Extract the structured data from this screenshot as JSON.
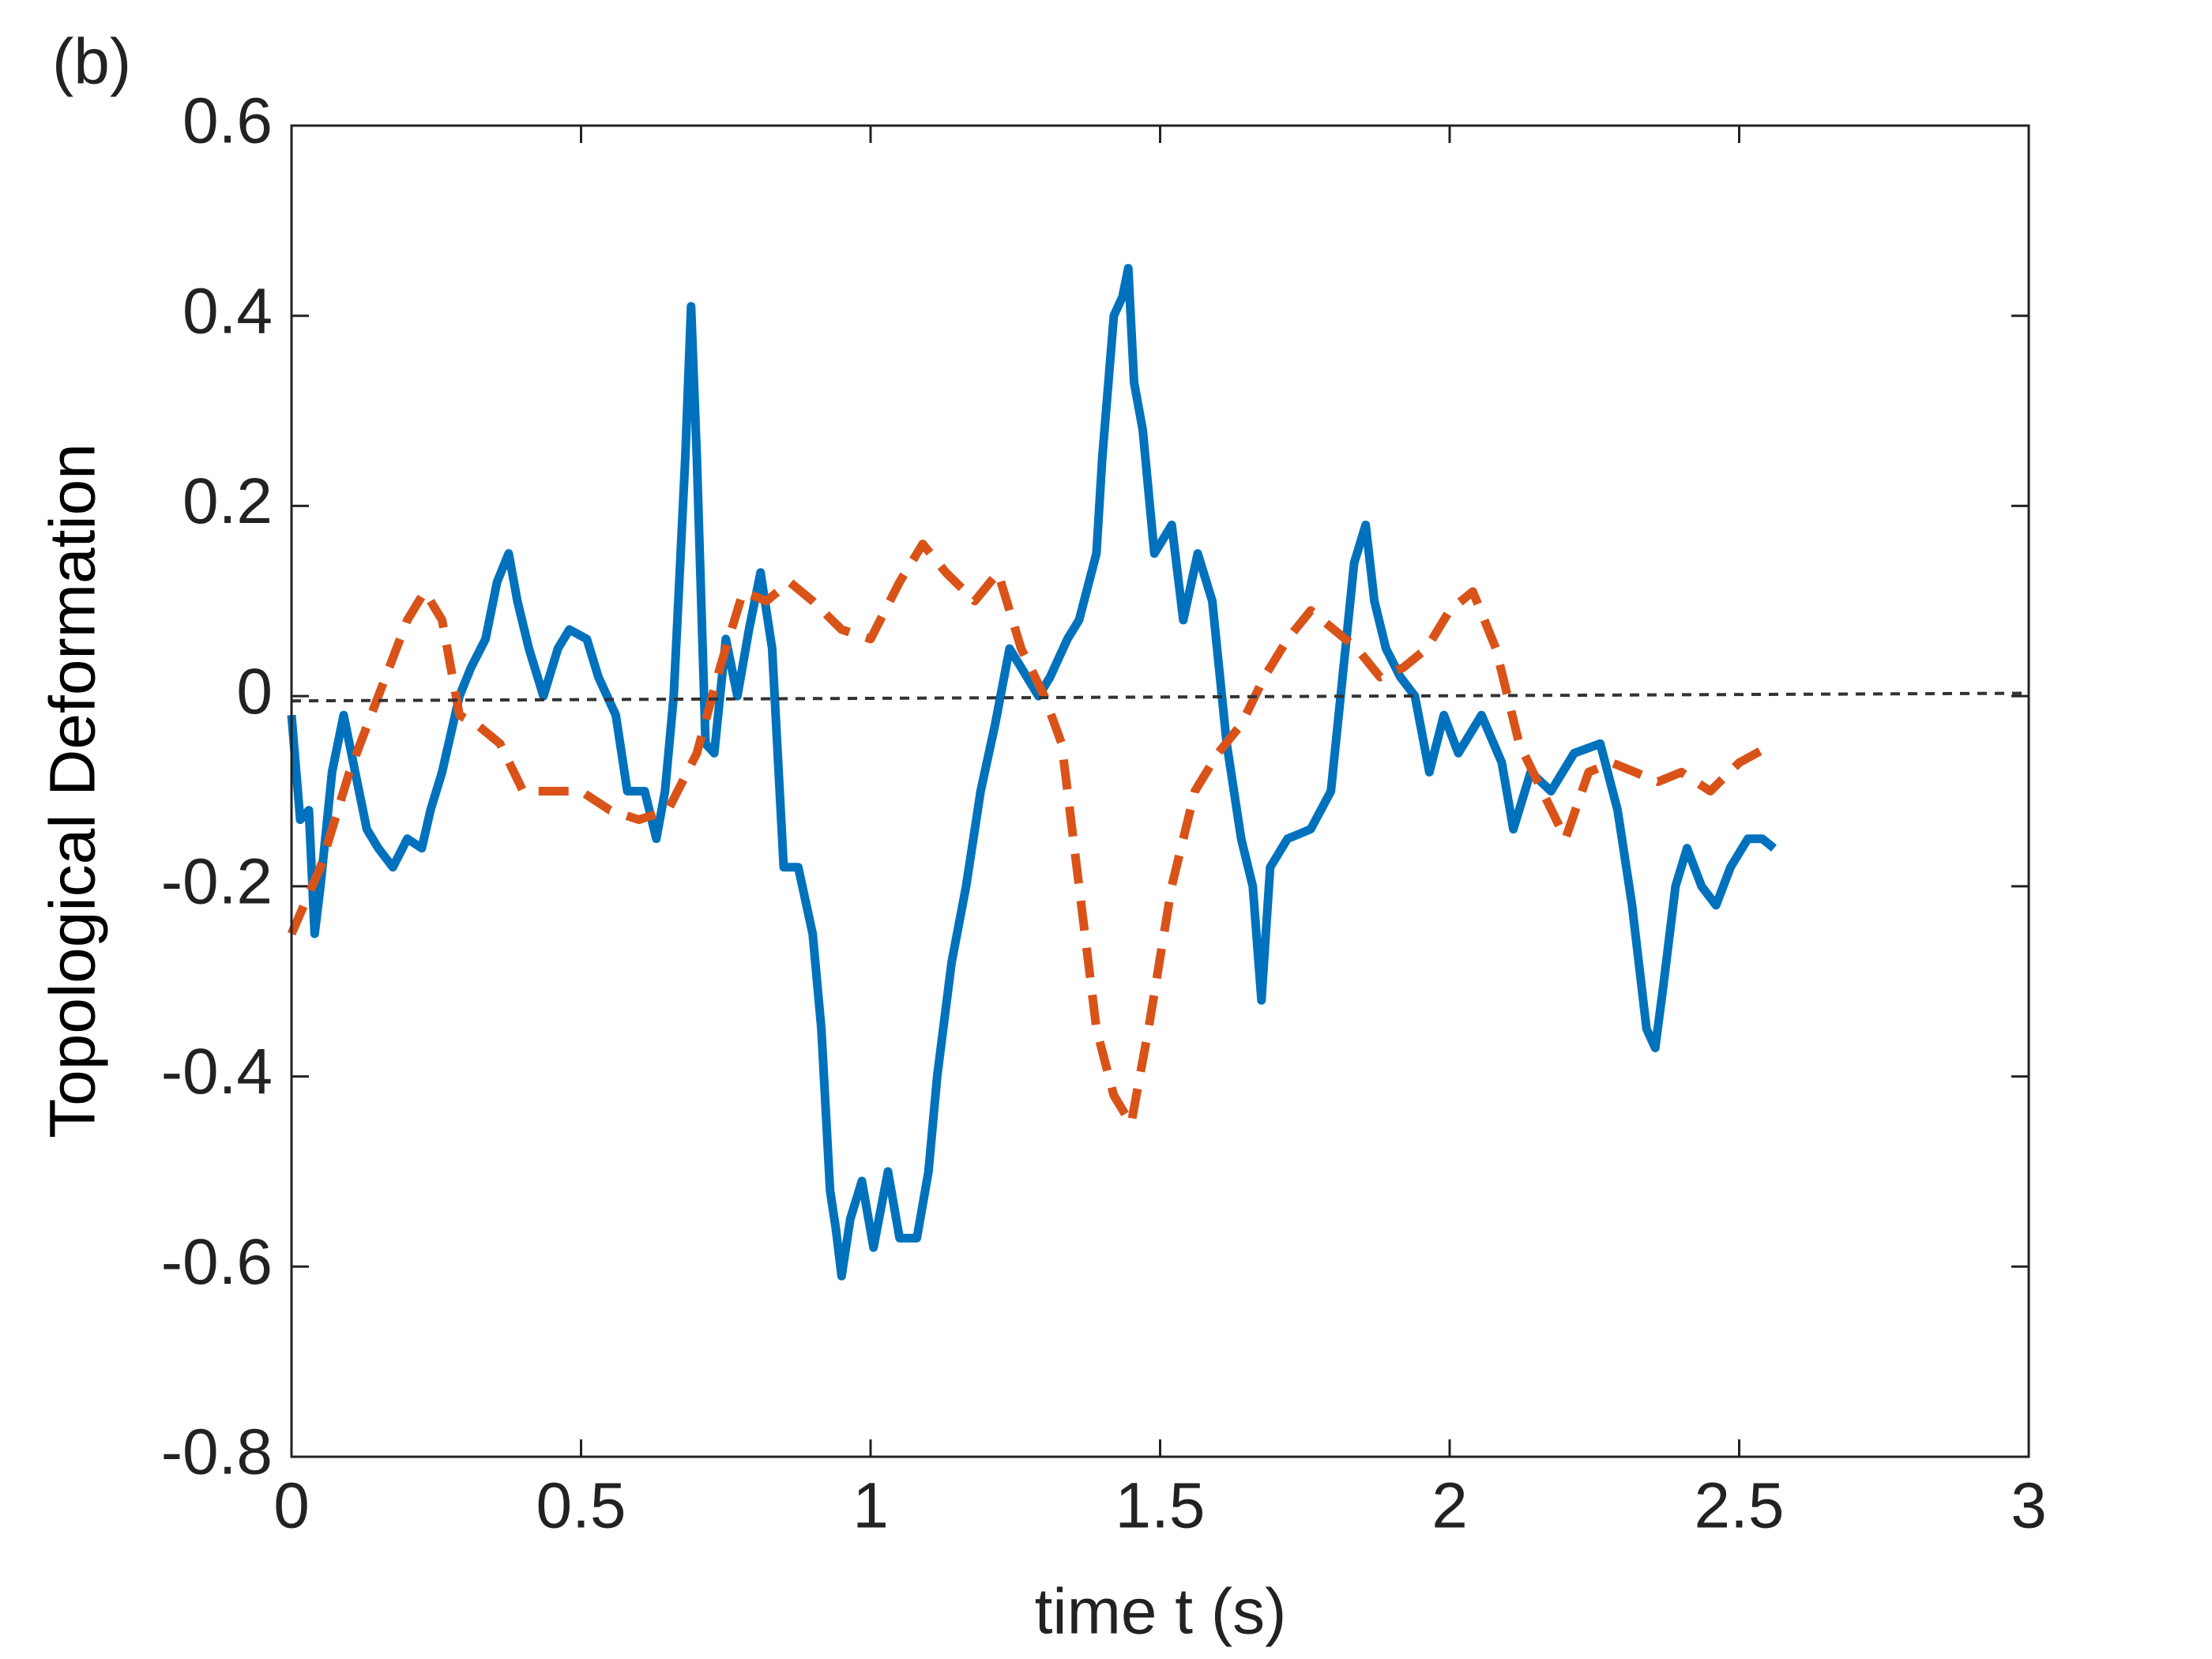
{
  "chart_data": {
    "type": "line",
    "title": "(b)",
    "x_label": "time  t (s)",
    "y_label": "Topological Deformation",
    "xlim": [
      0,
      3
    ],
    "xticks": [
      0,
      0.5,
      1,
      1.5,
      2,
      2.5,
      3
    ],
    "ylim": [
      -0.8,
      0.6
    ],
    "yticks": [
      -0.8,
      -0.6,
      -0.4,
      -0.2,
      0,
      0.2,
      0.4,
      0.6
    ],
    "grid": false,
    "series": [
      {
        "color": "#0072BD",
        "dash": false,
        "x": [
          0,
          0.015,
          0.03,
          0.04,
          0.05,
          0.07,
          0.09,
          0.11,
          0.13,
          0.15,
          0.175,
          0.2,
          0.225,
          0.24,
          0.26,
          0.29,
          0.31,
          0.335,
          0.355,
          0.375,
          0.39,
          0.41,
          0.435,
          0.46,
          0.48,
          0.51,
          0.53,
          0.56,
          0.58,
          0.61,
          0.63,
          0.645,
          0.66,
          0.68,
          0.69,
          0.7,
          0.715,
          0.73,
          0.75,
          0.77,
          0.79,
          0.81,
          0.83,
          0.85,
          0.875,
          0.9,
          0.915,
          0.93,
          0.94,
          0.95,
          0.965,
          0.985,
          1.005,
          1.03,
          1.05,
          1.08,
          1.1,
          1.115,
          1.14,
          1.165,
          1.19,
          1.215,
          1.24,
          1.26,
          1.29,
          1.31,
          1.34,
          1.36,
          1.39,
          1.4,
          1.42,
          1.435,
          1.445,
          1.455,
          1.47,
          1.49,
          1.52,
          1.54,
          1.565,
          1.59,
          1.615,
          1.64,
          1.66,
          1.675,
          1.69,
          1.72,
          1.76,
          1.795,
          1.82,
          1.835,
          1.855,
          1.87,
          1.89,
          1.915,
          1.94,
          1.965,
          1.99,
          2.015,
          2.055,
          2.09,
          2.11,
          2.14,
          2.175,
          2.215,
          2.26,
          2.29,
          2.315,
          2.34,
          2.355,
          2.37,
          2.39,
          2.41,
          2.435,
          2.46,
          2.485,
          2.515,
          2.54,
          2.56
        ],
        "values": [
          -0.02,
          -0.13,
          -0.12,
          -0.25,
          -0.2,
          -0.08,
          -0.02,
          -0.08,
          -0.14,
          -0.16,
          -0.18,
          -0.15,
          -0.16,
          -0.12,
          -0.08,
          0.0,
          0.03,
          0.06,
          0.12,
          0.15,
          0.1,
          0.05,
          0.0,
          0.05,
          0.07,
          0.06,
          0.02,
          -0.02,
          -0.1,
          -0.1,
          -0.15,
          -0.1,
          0.0,
          0.25,
          0.41,
          0.25,
          -0.05,
          -0.06,
          0.06,
          0.0,
          0.07,
          0.13,
          0.05,
          -0.18,
          -0.18,
          -0.25,
          -0.35,
          -0.52,
          -0.56,
          -0.61,
          -0.55,
          -0.51,
          -0.58,
          -0.5,
          -0.57,
          -0.57,
          -0.5,
          -0.4,
          -0.28,
          -0.2,
          -0.1,
          -0.03,
          0.05,
          0.03,
          0.0,
          0.02,
          0.06,
          0.08,
          0.15,
          0.25,
          0.4,
          0.42,
          0.45,
          0.33,
          0.28,
          0.15,
          0.18,
          0.08,
          0.15,
          0.1,
          -0.05,
          -0.15,
          -0.2,
          -0.32,
          -0.18,
          -0.15,
          -0.14,
          -0.1,
          0.05,
          0.14,
          0.18,
          0.1,
          0.05,
          0.02,
          0.0,
          -0.08,
          -0.02,
          -0.06,
          -0.02,
          -0.07,
          -0.14,
          -0.08,
          -0.1,
          -0.06,
          -0.05,
          -0.12,
          -0.22,
          -0.35,
          -0.37,
          -0.3,
          -0.2,
          -0.16,
          -0.2,
          -0.22,
          -0.18,
          -0.15,
          -0.15,
          -0.16
        ]
      },
      {
        "color": "#D95319",
        "dash": true,
        "x": [
          0,
          0.05,
          0.1,
          0.15,
          0.2,
          0.23,
          0.26,
          0.29,
          0.32,
          0.36,
          0.4,
          0.45,
          0.5,
          0.55,
          0.6,
          0.65,
          0.7,
          0.74,
          0.78,
          0.82,
          0.86,
          0.9,
          0.95,
          1.0,
          1.05,
          1.09,
          1.13,
          1.18,
          1.22,
          1.26,
          1.3,
          1.33,
          1.36,
          1.39,
          1.42,
          1.45,
          1.48,
          1.52,
          1.56,
          1.6,
          1.64,
          1.68,
          1.72,
          1.76,
          1.8,
          1.84,
          1.88,
          1.92,
          1.96,
          2.0,
          2.04,
          2.08,
          2.12,
          2.16,
          2.2,
          2.24,
          2.28,
          2.32,
          2.36,
          2.4,
          2.45,
          2.5,
          2.56
        ],
        "values": [
          -0.25,
          -0.18,
          -0.08,
          0.0,
          0.08,
          0.11,
          0.08,
          -0.02,
          -0.03,
          -0.05,
          -0.1,
          -0.1,
          -0.1,
          -0.12,
          -0.13,
          -0.12,
          -0.06,
          0.03,
          0.11,
          0.1,
          0.12,
          0.1,
          0.07,
          0.06,
          0.12,
          0.16,
          0.13,
          0.1,
          0.13,
          0.05,
          0.0,
          -0.05,
          -0.2,
          -0.35,
          -0.42,
          -0.45,
          -0.35,
          -0.2,
          -0.1,
          -0.06,
          -0.03,
          0.02,
          0.06,
          0.09,
          0.07,
          0.05,
          0.02,
          0.03,
          0.05,
          0.09,
          0.11,
          0.05,
          -0.05,
          -0.1,
          -0.15,
          -0.08,
          -0.07,
          -0.08,
          -0.09,
          -0.08,
          -0.1,
          -0.07,
          -0.05
        ]
      },
      {
        "color": "#333333",
        "dash": true,
        "thin": true,
        "x": [
          0,
          3
        ],
        "values": [
          -0.005,
          0.003
        ]
      }
    ]
  }
}
